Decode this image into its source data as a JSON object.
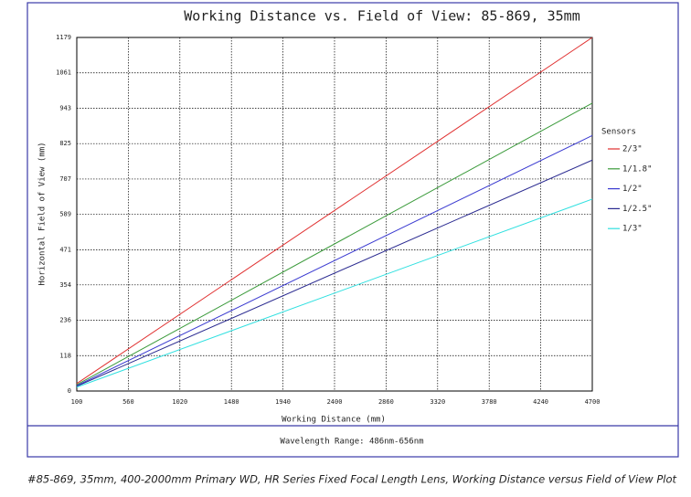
{
  "chart_data": {
    "type": "line",
    "title": "Working Distance vs. Field of View: 85-869, 35mm",
    "xlabel": "Working Distance (mm)",
    "ylabel": "Horizontal Field of View (mm)",
    "annotation": "Wavelength Range: 486nm-656nm",
    "legend_title": "Sensors",
    "legend": "right",
    "grid": true,
    "x": [
      100,
      4700
    ],
    "series": [
      {
        "name": "2/3\"",
        "color": "#e03030",
        "values": [
          25,
          1179
        ]
      },
      {
        "name": "1/1.8\"",
        "color": "#3a9a3a",
        "values": [
          21,
          960
        ]
      },
      {
        "name": "1/2\"",
        "color": "#3a3ad0",
        "values": [
          18,
          852
        ]
      },
      {
        "name": "1/2.5\"",
        "color": "#2a2a90",
        "values": [
          16,
          770
        ]
      },
      {
        "name": "1/3\"",
        "color": "#30e0e0",
        "values": [
          13,
          640
        ]
      }
    ],
    "xlim": [
      100,
      4700
    ],
    "xticks": [
      100,
      560,
      1020,
      1480,
      1940,
      2400,
      2860,
      3320,
      3780,
      4240,
      4700
    ],
    "ylim": [
      0,
      1179
    ],
    "yticks": [
      0,
      118,
      236,
      354,
      471,
      589,
      707,
      825,
      943,
      1061,
      1179
    ]
  },
  "caption": "#85-869, 35mm, 400-2000mm Primary WD, HR Series Fixed Focal Length Lens, Working Distance versus Field of View Plot"
}
